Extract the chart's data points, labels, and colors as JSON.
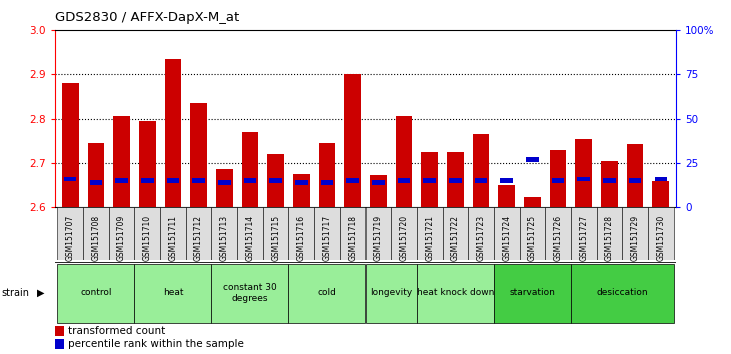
{
  "title": "GDS2830 / AFFX-DapX-M_at",
  "samples": [
    "GSM151707",
    "GSM151708",
    "GSM151709",
    "GSM151710",
    "GSM151711",
    "GSM151712",
    "GSM151713",
    "GSM151714",
    "GSM151715",
    "GSM151716",
    "GSM151717",
    "GSM151718",
    "GSM151719",
    "GSM151720",
    "GSM151721",
    "GSM151722",
    "GSM151723",
    "GSM151724",
    "GSM151725",
    "GSM151726",
    "GSM151727",
    "GSM151728",
    "GSM151729",
    "GSM151730"
  ],
  "transformed_count": [
    2.88,
    2.745,
    2.805,
    2.795,
    2.935,
    2.835,
    2.685,
    2.77,
    2.72,
    2.675,
    2.745,
    2.9,
    2.672,
    2.805,
    2.725,
    2.725,
    2.765,
    2.65,
    2.622,
    2.73,
    2.755,
    2.705,
    2.742,
    2.658
  ],
  "percentile_rank_pct": [
    16,
    14,
    15,
    15,
    15,
    15,
    14,
    15,
    15,
    14,
    14,
    15,
    14,
    15,
    15,
    15,
    15,
    15,
    27,
    15,
    16,
    15,
    15,
    16
  ],
  "groups": [
    {
      "label": "control",
      "start": 0,
      "end": 2,
      "light": true
    },
    {
      "label": "heat",
      "start": 3,
      "end": 5,
      "light": true
    },
    {
      "label": "constant 30\ndegrees",
      "start": 6,
      "end": 8,
      "light": true
    },
    {
      "label": "cold",
      "start": 9,
      "end": 11,
      "light": true
    },
    {
      "label": "longevity",
      "start": 12,
      "end": 13,
      "light": true
    },
    {
      "label": "heat knock down",
      "start": 14,
      "end": 16,
      "light": true
    },
    {
      "label": "starvation",
      "start": 17,
      "end": 19,
      "light": false
    },
    {
      "label": "desiccation",
      "start": 20,
      "end": 23,
      "light": false
    }
  ],
  "light_group_color": "#99ee99",
  "dark_group_color": "#44cc44",
  "ylim_left": [
    2.6,
    3.0
  ],
  "ylim_right": [
    0,
    100
  ],
  "yticks_left": [
    2.6,
    2.7,
    2.8,
    2.9,
    3.0
  ],
  "yticks_right": [
    0,
    25,
    50,
    75,
    100
  ],
  "bar_color": "#cc0000",
  "percentile_color": "#0000cc",
  "base_value": 2.6,
  "grid_lines": [
    2.7,
    2.8,
    2.9
  ]
}
